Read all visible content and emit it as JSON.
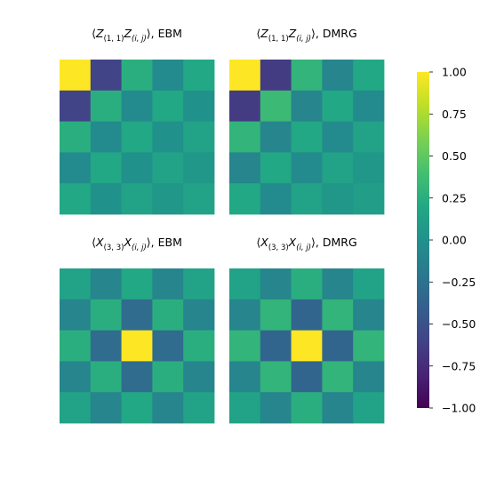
{
  "chart_data": [
    {
      "type": "heatmap",
      "title": "⟨Z(1,1)Z(i,j)⟩, EBM",
      "rows": 5,
      "cols": 5,
      "values": [
        [
          1.0,
          -0.6,
          0.25,
          -0.05,
          0.2
        ],
        [
          -0.6,
          0.25,
          -0.05,
          0.2,
          0.0
        ],
        [
          0.25,
          -0.05,
          0.2,
          0.0,
          0.15
        ],
        [
          -0.05,
          0.2,
          0.0,
          0.15,
          0.05
        ],
        [
          0.2,
          0.0,
          0.15,
          0.05,
          0.15
        ]
      ]
    },
    {
      "type": "heatmap",
      "title": "⟨Z(1,1)Z(i,j)⟩, DMRG",
      "rows": 5,
      "cols": 5,
      "values": [
        [
          1.0,
          -0.65,
          0.3,
          -0.1,
          0.2
        ],
        [
          -0.65,
          0.35,
          -0.1,
          0.2,
          -0.05
        ],
        [
          0.3,
          -0.1,
          0.2,
          -0.05,
          0.15
        ],
        [
          -0.1,
          0.2,
          -0.05,
          0.15,
          0.05
        ],
        [
          0.2,
          -0.05,
          0.15,
          0.05,
          0.1
        ]
      ]
    },
    {
      "type": "heatmap",
      "title": "⟨X(3,3)X(i,j)⟩, EBM",
      "rows": 5,
      "cols": 5,
      "values": [
        [
          0.15,
          -0.1,
          0.2,
          -0.1,
          0.15
        ],
        [
          -0.1,
          0.25,
          -0.3,
          0.25,
          -0.1
        ],
        [
          0.25,
          -0.3,
          1.0,
          -0.3,
          0.25
        ],
        [
          -0.1,
          0.25,
          -0.3,
          0.25,
          -0.1
        ],
        [
          0.15,
          -0.1,
          0.2,
          -0.1,
          0.15
        ]
      ]
    },
    {
      "type": "heatmap",
      "title": "⟨X(3,3)X(i,j)⟩, DMRG",
      "rows": 5,
      "cols": 5,
      "values": [
        [
          0.15,
          -0.1,
          0.25,
          -0.1,
          0.15
        ],
        [
          -0.1,
          0.3,
          -0.35,
          0.3,
          -0.1
        ],
        [
          0.3,
          -0.35,
          1.0,
          -0.35,
          0.3
        ],
        [
          -0.1,
          0.3,
          -0.35,
          0.3,
          -0.1
        ],
        [
          0.15,
          -0.1,
          0.25,
          -0.1,
          0.15
        ]
      ]
    }
  ],
  "colorbar": {
    "colormap": "viridis",
    "range": [
      -1.0,
      1.0
    ],
    "ticks": [
      1.0,
      0.75,
      0.5,
      0.25,
      0.0,
      -0.25,
      -0.5,
      -0.75,
      -1.0
    ],
    "tick_labels": [
      "1.00",
      "0.75",
      "0.50",
      "0.25",
      "0.00",
      "−0.25",
      "−0.50",
      "−0.75",
      "−1.00"
    ]
  },
  "titles": [
    {
      "bracket_open": "⟨",
      "op": "Z",
      "site": "(1, 1)",
      "op2": "Z",
      "site2": "(i, j)",
      "bracket_close": "⟩",
      "method": ", EBM"
    },
    {
      "bracket_open": "⟨",
      "op": "Z",
      "site": "(1, 1)",
      "op2": "Z",
      "site2": "(i, j)",
      "bracket_close": "⟩",
      "method": ", DMRG"
    },
    {
      "bracket_open": "⟨",
      "op": "X",
      "site": "(3, 3)",
      "op2": "X",
      "site2": "(i, j)",
      "bracket_close": "⟩",
      "method": ", EBM"
    },
    {
      "bracket_open": "⟨",
      "op": "X",
      "site": "(3, 3)",
      "op2": "X",
      "site2": "(i, j)",
      "bracket_close": "⟩",
      "method": ", DMRG"
    }
  ]
}
